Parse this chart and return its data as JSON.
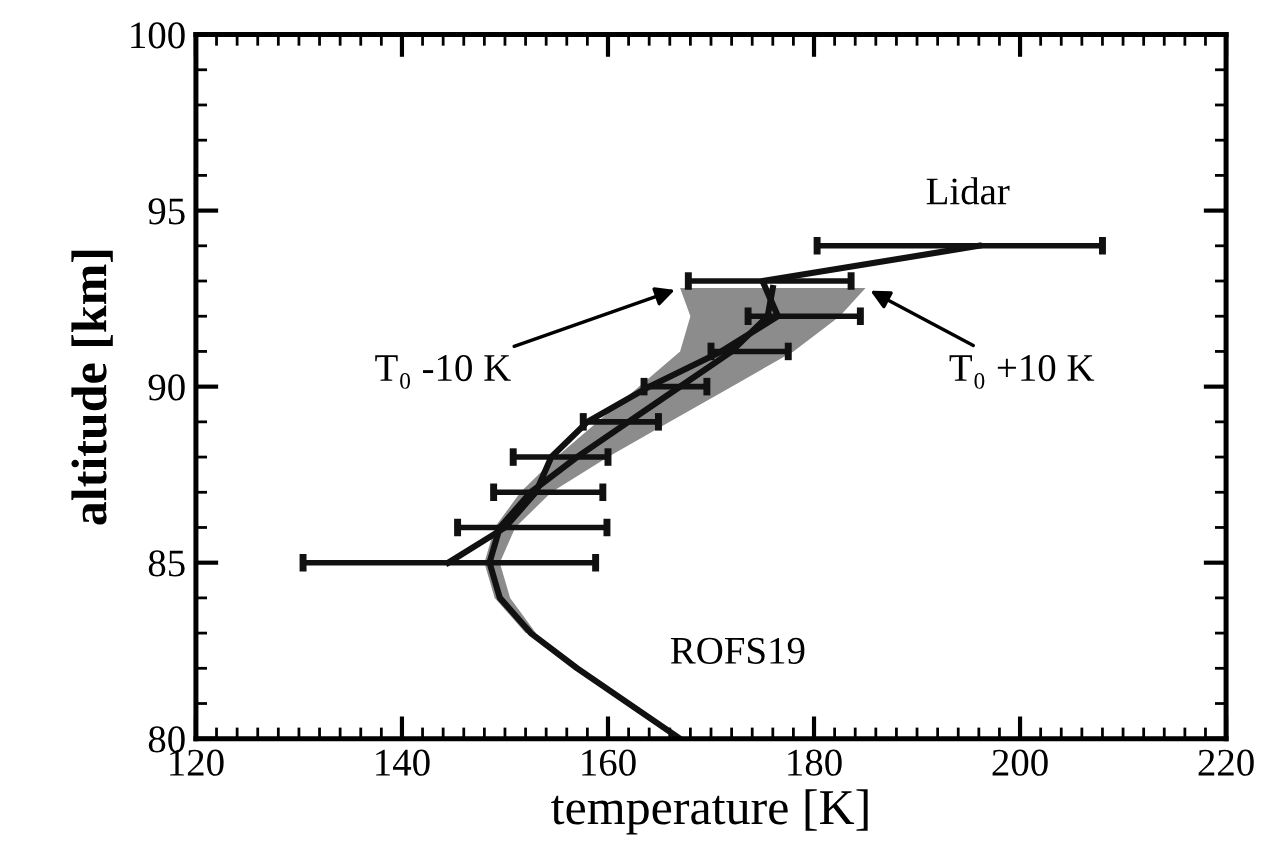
{
  "chart_data": {
    "type": "line",
    "orientation": "horizontal",
    "xlabel": "temperature [K]",
    "ylabel": "altitude [km]",
    "xlim": [
      120,
      220
    ],
    "xticks": [
      120,
      140,
      160,
      180,
      200,
      220
    ],
    "ylim": [
      80,
      100
    ],
    "yticks": [
      80,
      85,
      90,
      95,
      100
    ],
    "grid": false,
    "marker": "none",
    "line_style": "solid",
    "series": [
      {
        "color": "#111111",
        "x": [
          80,
          81,
          82,
          83,
          84,
          85,
          86,
          87,
          88,
          89,
          90,
          91,
          92,
          92.8
        ],
        "values": [
          167,
          162,
          157,
          152.5,
          149.5,
          148.5,
          149.5,
          152.5,
          157,
          162,
          167,
          172,
          175.5,
          176
        ],
        "lower": [
          null,
          null,
          null,
          152,
          149,
          148,
          149,
          151.5,
          155,
          159,
          163,
          167,
          168,
          167
        ],
        "upper": [
          null,
          null,
          null,
          153,
          150.5,
          149.5,
          151,
          154.5,
          160,
          166,
          172,
          178,
          182.5,
          185
        ]
      },
      {
        "color": "#111111",
        "x": [
          85,
          86,
          87,
          88,
          89,
          90,
          91,
          92,
          93,
          94
        ],
        "values": [
          144.5,
          150,
          153,
          154.5,
          158,
          164,
          171,
          176.5,
          175,
          196
        ],
        "errors": [
          [
            130.4,
            158.8
          ],
          [
            145.4,
            159.9
          ],
          [
            148.9,
            159.5
          ],
          [
            150.8,
            160
          ],
          [
            157.6,
            164.9
          ],
          [
            163.5,
            169.6
          ],
          [
            170,
            177.5
          ],
          [
            173.6,
            184.5
          ],
          [
            167.8,
            183.6
          ],
          [
            180.3,
            208
          ]
        ]
      }
    ],
    "annotations": [
      {
        "text": "Lidar",
        "x": 196,
        "y": 94
      },
      "ROFS19",
      {
        "text": "T₀ -10 K",
        "x": 167,
        "y": 92.8
      },
      {
        "text": "T₀ +10 K",
        "x": 185,
        "y": 92.8
      }
    ]
  }
}
